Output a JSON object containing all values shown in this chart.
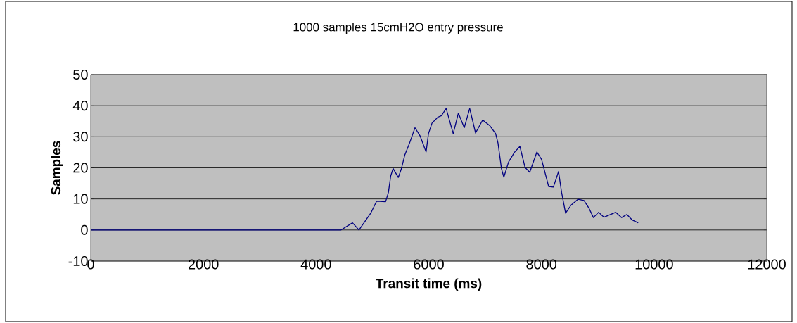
{
  "chart_data": {
    "type": "line",
    "title": "1000 samples 15cmH2O entry pressure",
    "xlabel": "Transit time (ms)",
    "ylabel": "Samples",
    "xlim": [
      0,
      12000
    ],
    "xticks": [
      0,
      2000,
      4000,
      6000,
      8000,
      10000,
      12000
    ],
    "ylim": [
      -10,
      50
    ],
    "yticks": [
      -10,
      0,
      10,
      20,
      30,
      40,
      50
    ],
    "grid": "y",
    "marker": "none",
    "line_style": "solid",
    "series": [
      {
        "color": "#000080",
        "x": [
          0,
          4443,
          4647,
          4761,
          4970,
          5075,
          5234,
          5284,
          5325,
          5367,
          5459,
          5514,
          5576,
          5660,
          5756,
          5848,
          5953,
          5995,
          6058,
          6162,
          6225,
          6309,
          6434,
          6526,
          6630,
          6727,
          6831,
          6957,
          7082,
          7187,
          7229,
          7291,
          7333,
          7417,
          7522,
          7618,
          7710,
          7793,
          7919,
          8003,
          8128,
          8212,
          8304,
          8358,
          8429,
          8525,
          8651,
          8755,
          8839,
          8923,
          9015,
          9111,
          9320,
          9424,
          9516,
          9613,
          9718
        ],
        "values": [
          0,
          0,
          2.3,
          0,
          5.4,
          9.3,
          9.1,
          12.1,
          17.4,
          19.8,
          16.9,
          19.7,
          24.2,
          28,
          32.9,
          30.2,
          25.1,
          31,
          34.4,
          36.3,
          36.8,
          39.1,
          31,
          37.6,
          32.9,
          39.1,
          31.2,
          35.4,
          33.6,
          31,
          28,
          19.7,
          17,
          21.9,
          25,
          26.9,
          20.1,
          18.6,
          25.1,
          22.7,
          14,
          13.8,
          18.8,
          12.1,
          5.4,
          8,
          9.9,
          9.5,
          7.2,
          4,
          5.7,
          4.1,
          5.7,
          4,
          5,
          3.2,
          2.3
        ]
      }
    ]
  }
}
